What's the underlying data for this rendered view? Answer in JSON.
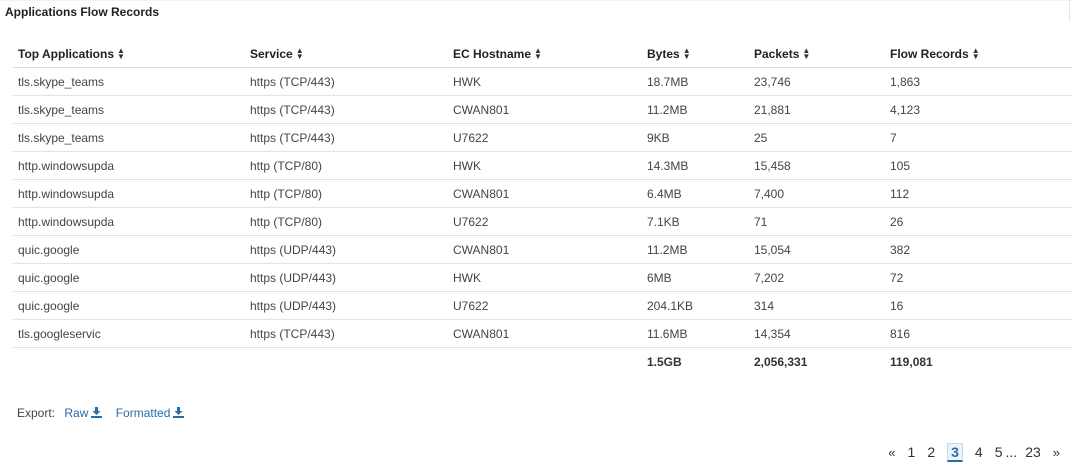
{
  "panel": {
    "title": "Applications Flow Records"
  },
  "table": {
    "columns": [
      "Top Applications",
      "Service",
      "EC Hostname",
      "Bytes",
      "Packets",
      "Flow Records"
    ],
    "rows": [
      [
        "tls.skype_teams",
        "https (TCP/443)",
        "HWK",
        "18.7MB",
        "23,746",
        "1,863"
      ],
      [
        "tls.skype_teams",
        "https (TCP/443)",
        "CWAN801",
        "11.2MB",
        "21,881",
        "4,123"
      ],
      [
        "tls.skype_teams",
        "https (TCP/443)",
        "U7622",
        "9KB",
        "25",
        "7"
      ],
      [
        "http.windowsupda",
        "http (TCP/80)",
        "HWK",
        "14.3MB",
        "15,458",
        "105"
      ],
      [
        "http.windowsupda",
        "http (TCP/80)",
        "CWAN801",
        "6.4MB",
        "7,400",
        "112"
      ],
      [
        "http.windowsupda",
        "http (TCP/80)",
        "U7622",
        "7.1KB",
        "71",
        "26"
      ],
      [
        "quic.google",
        "https (UDP/443)",
        "CWAN801",
        "11.2MB",
        "15,054",
        "382"
      ],
      [
        "quic.google",
        "https (UDP/443)",
        "HWK",
        "6MB",
        "7,202",
        "72"
      ],
      [
        "quic.google",
        "https (UDP/443)",
        "U7622",
        "204.1KB",
        "314",
        "16"
      ],
      [
        "tls.googleservic",
        "https (TCP/443)",
        "CWAN801",
        "11.6MB",
        "14,354",
        "816"
      ]
    ],
    "totals": {
      "bytes": "1.5GB",
      "packets": "2,056,331",
      "flow_records": "119,081"
    }
  },
  "export": {
    "label": "Export:",
    "raw": "Raw",
    "formatted": "Formatted",
    "icon": "download-icon"
  },
  "pagination": {
    "prev": "«",
    "next": "»",
    "pages": [
      "1",
      "2",
      "3",
      "4",
      "5"
    ],
    "current": "3",
    "ellipsis": "...",
    "last": "23"
  }
}
